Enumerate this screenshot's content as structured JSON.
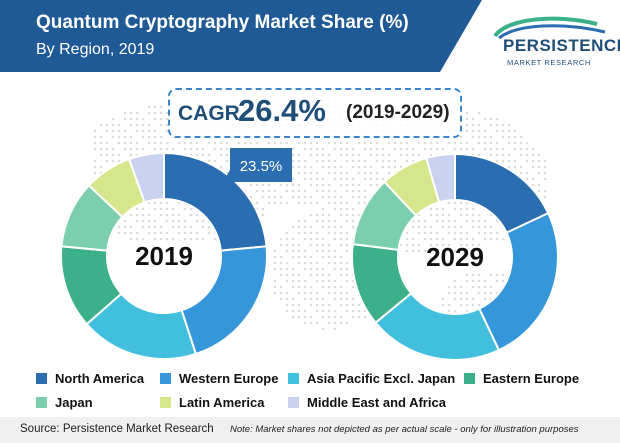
{
  "title": "Quantum Cryptography Market Share (%)",
  "subtitle": "By Region, 2019",
  "brand": {
    "name": "PERSISTENCE",
    "tagline": "MARKET RESEARCH"
  },
  "cagr": {
    "label": "CAGR",
    "value": "26.4%",
    "period": "(2019-2029)"
  },
  "colors": {
    "header": "#1f5a96",
    "North America": "#2a6db0",
    "Western Europe": "#3596da",
    "Asia Pacific Excl. Japan": "#43bfde",
    "Eastern Europe": "#3bb08a",
    "Japan": "#7ccfae",
    "Latin America": "#d6e68a",
    "Middle East and Africa": "#c9d2ee"
  },
  "chart_data": [
    {
      "type": "pie",
      "title": "2019",
      "categories": [
        "North America",
        "Western Europe",
        "Asia Pacific Excl. Japan",
        "Eastern Europe",
        "Japan",
        "Latin America",
        "Middle East and Africa"
      ],
      "values": [
        23.5,
        21.5,
        18.5,
        13.0,
        10.5,
        7.5,
        5.5
      ],
      "annotation": "23.5%"
    },
    {
      "type": "pie",
      "title": "2029",
      "categories": [
        "North America",
        "Western Europe",
        "Asia Pacific Excl. Japan",
        "Eastern Europe",
        "Japan",
        "Latin America",
        "Middle East and Africa"
      ],
      "values": [
        18.0,
        25.0,
        21.0,
        13.0,
        11.0,
        7.5,
        4.5
      ]
    }
  ],
  "legend": [
    "North America",
    "Western Europe",
    "Asia Pacific Excl. Japan",
    "Eastern Europe",
    "Japan",
    "Latin America",
    "Middle East and Africa"
  ],
  "footer": {
    "source": "Source: Persistence Market Research",
    "note": "Note: Market shares not depicted as per actual scale - only for illustration purposes"
  }
}
